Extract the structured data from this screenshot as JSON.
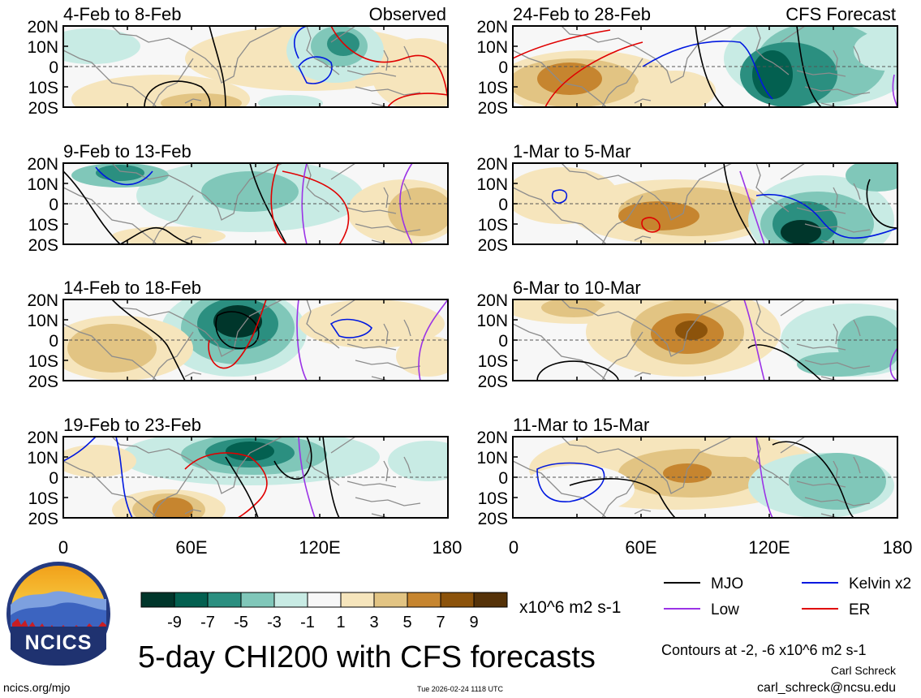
{
  "figure": {
    "title": "5-day CHI200 with CFS forecasts",
    "site": "ncics.org/mjo",
    "timestamp": "Tue 2026-02-24 1118 UTC",
    "author": "Carl Schreck",
    "email": "carl_schreck@ncsu.edu",
    "contour_note": "Contours at -2, -6 x10^6 m2 s-1",
    "logo_text": "NCICS"
  },
  "labels": {
    "observed": "Observed",
    "forecast": "CFS Forecast"
  },
  "axes": {
    "lat_labels": [
      "20N",
      "10N",
      "0",
      "10S",
      "20S"
    ],
    "lon_labels": [
      "0",
      "60E",
      "120E",
      "180"
    ]
  },
  "panels": [
    {
      "title": "4-Feb to 8-Feb",
      "tag": "observed"
    },
    {
      "title": "24-Feb to 28-Feb",
      "tag": "forecast"
    },
    {
      "title": "9-Feb to 13-Feb",
      "tag": ""
    },
    {
      "title": "1-Mar to 5-Mar",
      "tag": ""
    },
    {
      "title": "14-Feb to 18-Feb",
      "tag": ""
    },
    {
      "title": "6-Mar to 10-Mar",
      "tag": ""
    },
    {
      "title": "19-Feb to 23-Feb",
      "tag": ""
    },
    {
      "title": "11-Mar to 15-Mar",
      "tag": ""
    }
  ],
  "colorbar": {
    "unit": "x10^6 m2 s-1",
    "tick_labels": [
      "-9",
      "-7",
      "-5",
      "-3",
      "-1",
      "1",
      "3",
      "5",
      "7",
      "9"
    ],
    "colors": [
      "#00362b",
      "#036050",
      "#2b8f80",
      "#80c7b9",
      "#c8ebe4",
      "#f7f7f7",
      "#f6e5bc",
      "#e2c483",
      "#c6852f",
      "#8c530b",
      "#553208"
    ]
  },
  "legend": {
    "entries": [
      {
        "label": "MJO",
        "color": "#000000"
      },
      {
        "label": "Kelvin x2",
        "color": "#0018e0"
      },
      {
        "label": "Low",
        "color": "#9b33e6"
      },
      {
        "label": "ER",
        "color": "#e00000"
      }
    ]
  }
}
